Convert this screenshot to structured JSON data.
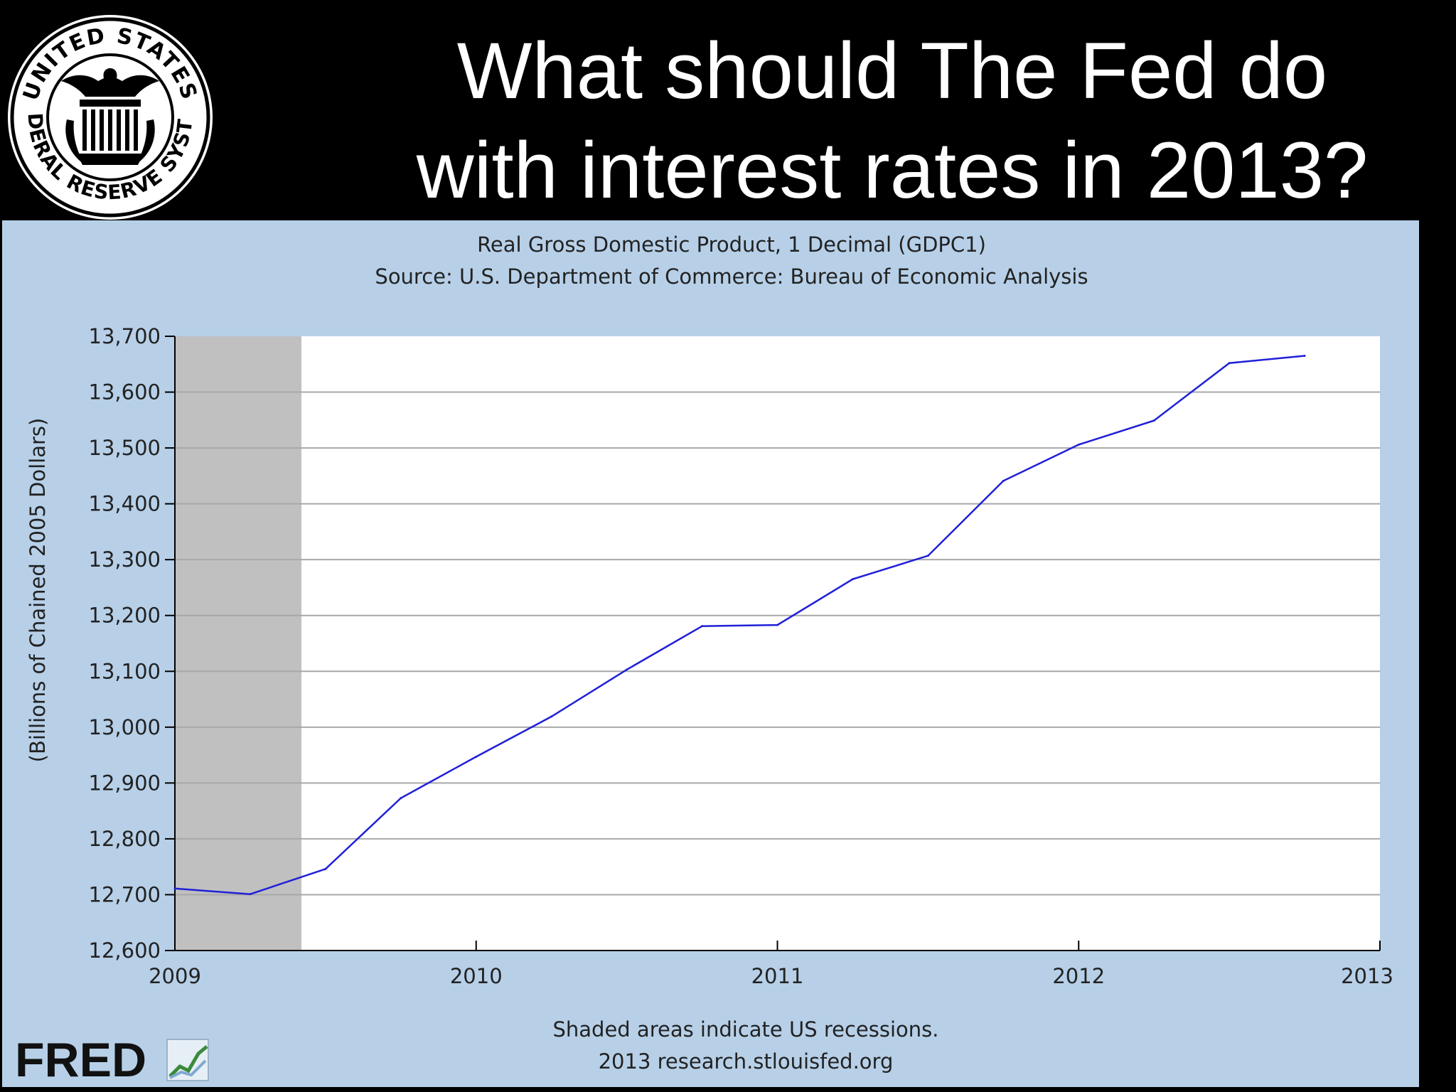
{
  "slide": {
    "title_line1": "What should The Fed do",
    "title_line2": "with interest rates in 2013?",
    "seal_text_top": "UNITED STATES",
    "seal_text_bottom": "FEDERAL RESERVE SYSTEM"
  },
  "chart_data": {
    "type": "line",
    "title": "Real Gross Domestic Product, 1 Decimal (GDPC1)",
    "subtitle": "Source: U.S. Department of Commerce: Bureau of Economic Analysis",
    "ylabel": "(Billions of Chained 2005 Dollars)",
    "xlabel": "",
    "xlim": [
      2009,
      2013
    ],
    "ylim": [
      12600,
      13700
    ],
    "x_ticks": [
      "2009",
      "2010",
      "2011",
      "2012",
      "2013"
    ],
    "y_ticks": [
      "12,600",
      "12,700",
      "12,800",
      "12,900",
      "13,000",
      "13,100",
      "13,200",
      "13,300",
      "13,400",
      "13,500",
      "13,600",
      "13,700"
    ],
    "grid": true,
    "recession_shading": [
      [
        2009.0,
        2009.42
      ]
    ],
    "series": [
      {
        "color": "#2020d8",
        "x": [
          2009.0,
          2009.25,
          2009.5,
          2009.75,
          2010.0,
          2010.25,
          2010.5,
          2010.75,
          2011.0,
          2011.25,
          2011.5,
          2011.75,
          2012.0,
          2012.25,
          2012.5,
          2012.75
        ],
        "y": [
          12711,
          12701,
          12746,
          12873,
          12947,
          13019,
          13103,
          13181,
          13183,
          13265,
          13307,
          13441,
          13506,
          13549,
          13652,
          13665
        ]
      }
    ],
    "footnote1": "Shaded areas indicate US recessions.",
    "footnote2": "2013 research.stlouisfed.org",
    "logo_text": "FRED"
  }
}
